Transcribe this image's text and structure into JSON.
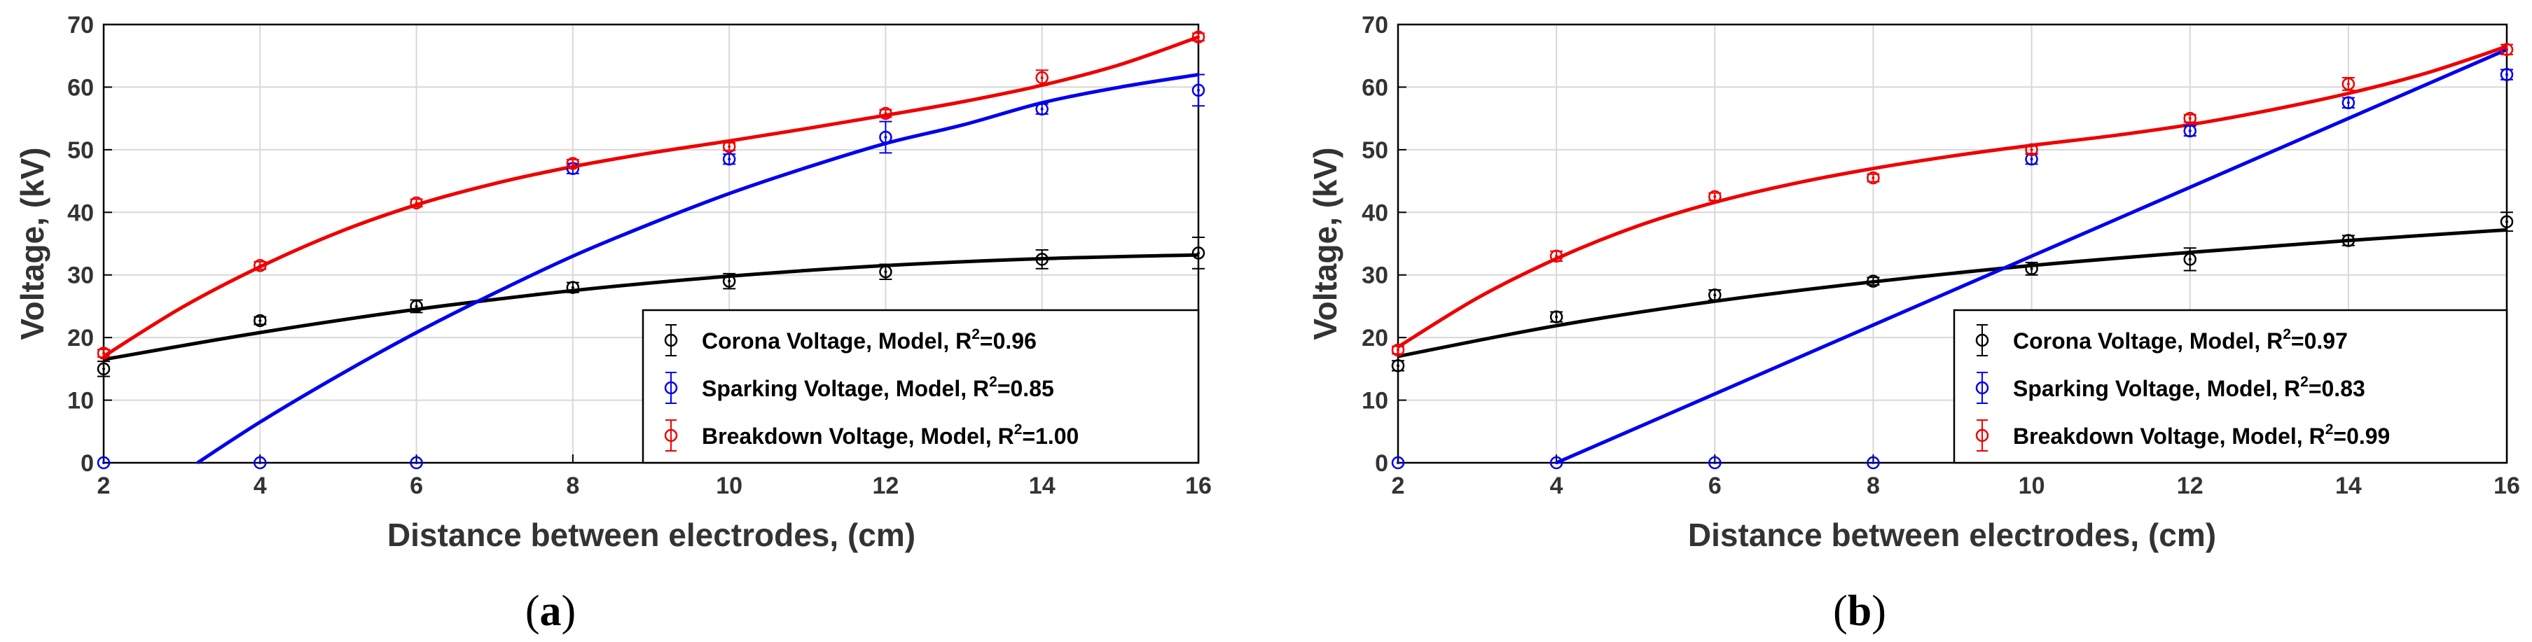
{
  "chart_data": [
    {
      "panel_label": "a",
      "type": "scatter",
      "xlabel": "Distance between electrodes, (cm)",
      "ylabel": "Voltage, (kV)",
      "xlim": [
        2,
        16
      ],
      "ylim": [
        0,
        70
      ],
      "xticks": [
        2,
        4,
        6,
        8,
        10,
        12,
        14,
        16
      ],
      "yticks": [
        0,
        10,
        20,
        30,
        40,
        50,
        60,
        70
      ],
      "grid": true,
      "legend_position": "bottom-right",
      "series": [
        {
          "name": "Corona Voltage",
          "legend_prefix": "Corona Voltage, Model, R",
          "r2_text": "=0.96",
          "color": "#000000",
          "points": [
            {
              "x": 2,
              "y": 15.0,
              "err": 1.2
            },
            {
              "x": 4,
              "y": 22.7,
              "err": 0.6
            },
            {
              "x": 6,
              "y": 25.0,
              "err": 1.0
            },
            {
              "x": 8,
              "y": 28.0,
              "err": 0.8
            },
            {
              "x": 10,
              "y": 29.0,
              "err": 1.2
            },
            {
              "x": 12,
              "y": 30.5,
              "err": 1.2
            },
            {
              "x": 14,
              "y": 32.5,
              "err": 1.5
            },
            {
              "x": 16,
              "y": 33.5,
              "err": 2.5
            }
          ],
          "model": {
            "x": [
              2,
              4,
              6,
              8,
              10,
              12,
              14,
              16
            ],
            "y": [
              16.5,
              20.8,
              24.5,
              27.5,
              29.8,
              31.5,
              32.6,
              33.2
            ]
          }
        },
        {
          "name": "Sparking Voltage",
          "legend_prefix": "Sparking Voltage, Model, R",
          "r2_text": "=0.85",
          "color": "#0000ee",
          "points": [
            {
              "x": 2,
              "y": 0,
              "err": 0
            },
            {
              "x": 4,
              "y": 0,
              "err": 0
            },
            {
              "x": 6,
              "y": 0,
              "err": 0
            },
            {
              "x": 8,
              "y": 47.0,
              "err": 0.8
            },
            {
              "x": 10,
              "y": 48.5,
              "err": 0.8
            },
            {
              "x": 12,
              "y": 52.0,
              "err": 2.5
            },
            {
              "x": 14,
              "y": 56.5,
              "err": 0.8
            },
            {
              "x": 16,
              "y": 59.5,
              "err": 2.5
            }
          ],
          "model": {
            "x": [
              3.2,
              4,
              5,
              6,
              7,
              8,
              9,
              10,
              11,
              12,
              13,
              14,
              15,
              16
            ],
            "y": [
              0,
              6.5,
              13.9,
              20.8,
              27.1,
              33.0,
              38.2,
              43.0,
              47.2,
              51.0,
              54.0,
              57.5,
              60.0,
              62.0
            ]
          }
        },
        {
          "name": "Breakdown Voltage",
          "legend_prefix": "Breakdown Voltage, Model, R",
          "r2_text": "=1.00",
          "color": "#ee0000",
          "points": [
            {
              "x": 2,
              "y": 17.5,
              "err": 0.6
            },
            {
              "x": 4,
              "y": 31.5,
              "err": 0.6
            },
            {
              "x": 6,
              "y": 41.5,
              "err": 0.6
            },
            {
              "x": 8,
              "y": 47.8,
              "err": 0.6
            },
            {
              "x": 10,
              "y": 50.5,
              "err": 0.6
            },
            {
              "x": 12,
              "y": 55.8,
              "err": 0.6
            },
            {
              "x": 14,
              "y": 61.5,
              "err": 1.2
            },
            {
              "x": 16,
              "y": 68.0,
              "err": 0.6
            }
          ],
          "model": {
            "x": [
              2,
              3,
              4,
              5,
              6,
              7,
              8,
              9,
              10,
              11,
              12,
              13,
              14,
              15,
              16
            ],
            "y": [
              17.0,
              24.8,
              31.3,
              36.8,
              41.2,
              44.6,
              47.3,
              49.5,
              51.4,
              53.4,
              55.5,
              57.7,
              60.3,
              63.6,
              68.0
            ]
          }
        }
      ]
    },
    {
      "panel_label": "b",
      "type": "scatter",
      "xlabel": "Distance between electrodes, (cm)",
      "ylabel": "Voltage, (kV)",
      "xlim": [
        2,
        16
      ],
      "ylim": [
        0,
        70
      ],
      "xticks": [
        2,
        4,
        6,
        8,
        10,
        12,
        14,
        16
      ],
      "yticks": [
        0,
        10,
        20,
        30,
        40,
        50,
        60,
        70
      ],
      "grid": true,
      "legend_position": "bottom-right",
      "series": [
        {
          "name": "Corona Voltage",
          "legend_prefix": "Corona Voltage, Model, R",
          "r2_text": "=0.97",
          "color": "#000000",
          "points": [
            {
              "x": 2,
              "y": 15.5,
              "err": 0.8
            },
            {
              "x": 4,
              "y": 23.3,
              "err": 0.8
            },
            {
              "x": 6,
              "y": 26.8,
              "err": 0.8
            },
            {
              "x": 8,
              "y": 29.0,
              "err": 0.6
            },
            {
              "x": 10,
              "y": 31.0,
              "err": 1.0
            },
            {
              "x": 12,
              "y": 32.5,
              "err": 1.8
            },
            {
              "x": 14,
              "y": 35.5,
              "err": 0.8
            },
            {
              "x": 16,
              "y": 38.5,
              "err": 1.5
            }
          ],
          "model": {
            "x": [
              2,
              4,
              6,
              8,
              10,
              12,
              14,
              16
            ],
            "y": [
              17.0,
              21.9,
              25.8,
              28.9,
              31.5,
              33.6,
              35.5,
              37.2
            ]
          }
        },
        {
          "name": "Sparking Voltage",
          "legend_prefix": "Sparking Voltage, Model, R",
          "r2_text": "=0.83",
          "color": "#0000ee",
          "points": [
            {
              "x": 2,
              "y": 0,
              "err": 0
            },
            {
              "x": 4,
              "y": 0,
              "err": 0
            },
            {
              "x": 6,
              "y": 0,
              "err": 0
            },
            {
              "x": 8,
              "y": 0,
              "err": 0
            },
            {
              "x": 10,
              "y": 48.5,
              "err": 0.8
            },
            {
              "x": 12,
              "y": 53.0,
              "err": 0.8
            },
            {
              "x": 14,
              "y": 57.5,
              "err": 0.8
            },
            {
              "x": 16,
              "y": 62.0,
              "err": 0.8
            }
          ],
          "model": {
            "x": [
              4,
              16
            ],
            "y": [
              0,
              66.0
            ]
          }
        },
        {
          "name": "Breakdown Voltage",
          "legend_prefix": "Breakdown Voltage, Model, R",
          "r2_text": "=0.99",
          "color": "#ee0000",
          "points": [
            {
              "x": 2,
              "y": 18.0,
              "err": 0.6
            },
            {
              "x": 4,
              "y": 33.0,
              "err": 0.8
            },
            {
              "x": 6,
              "y": 42.5,
              "err": 0.6
            },
            {
              "x": 8,
              "y": 45.5,
              "err": 0.6
            },
            {
              "x": 10,
              "y": 50.0,
              "err": 0.6
            },
            {
              "x": 12,
              "y": 55.0,
              "err": 0.6
            },
            {
              "x": 14,
              "y": 60.5,
              "err": 1.0
            },
            {
              "x": 16,
              "y": 66.0,
              "err": 0.8
            }
          ],
          "model": {
            "x": [
              2,
              3,
              4,
              5,
              6,
              7,
              8,
              9,
              10,
              11,
              12,
              13,
              14,
              15,
              16
            ],
            "y": [
              18.5,
              26.3,
              32.6,
              37.7,
              41.6,
              44.6,
              47.0,
              49.0,
              50.7,
              52.2,
              54.0,
              56.3,
              59.0,
              62.3,
              66.5
            ]
          }
        }
      ]
    }
  ]
}
